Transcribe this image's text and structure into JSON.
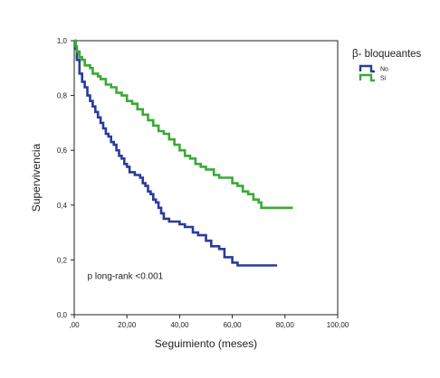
{
  "chart_data": {
    "type": "line",
    "step": true,
    "title": "",
    "xlabel": "Seguimiento (meses)",
    "ylabel": "Supervivencia",
    "xlim": [
      0,
      100
    ],
    "ylim": [
      0,
      1
    ],
    "x_ticks": [
      0,
      20,
      40,
      60,
      80,
      100
    ],
    "x_tick_labels": [
      ",00",
      "20,00",
      "40,00",
      "60,00",
      "80,00",
      "100,00"
    ],
    "y_ticks": [
      0,
      0.2,
      0.4,
      0.6,
      0.8,
      1.0
    ],
    "y_tick_labels": [
      "0,0",
      "0,2",
      "0,4",
      "0,6",
      "0,8",
      "1,0"
    ],
    "grid": false,
    "legend": {
      "title": "β- bloqueantes",
      "position": "top-right",
      "entries": [
        "No",
        "Si"
      ]
    },
    "annotation": "p long-rank <0.001",
    "series": [
      {
        "name": "No",
        "color": "#2b3b9a",
        "points": [
          [
            0,
            1.0
          ],
          [
            0.5,
            0.97
          ],
          [
            1,
            0.93
          ],
          [
            2,
            0.88
          ],
          [
            3,
            0.85
          ],
          [
            4,
            0.83
          ],
          [
            5,
            0.8
          ],
          [
            6,
            0.78
          ],
          [
            7,
            0.76
          ],
          [
            8,
            0.74
          ],
          [
            9,
            0.72
          ],
          [
            10,
            0.7
          ],
          [
            11,
            0.68
          ],
          [
            12,
            0.66
          ],
          [
            13,
            0.65
          ],
          [
            14,
            0.63
          ],
          [
            15,
            0.62
          ],
          [
            16,
            0.6
          ],
          [
            17,
            0.58
          ],
          [
            18,
            0.57
          ],
          [
            19,
            0.55
          ],
          [
            20,
            0.54
          ],
          [
            21,
            0.52
          ],
          [
            23,
            0.51
          ],
          [
            25,
            0.5
          ],
          [
            26,
            0.48
          ],
          [
            27,
            0.47
          ],
          [
            28,
            0.45
          ],
          [
            29,
            0.44
          ],
          [
            30,
            0.42
          ],
          [
            31,
            0.41
          ],
          [
            32,
            0.39
          ],
          [
            33,
            0.37
          ],
          [
            34,
            0.35
          ],
          [
            36,
            0.34
          ],
          [
            40,
            0.33
          ],
          [
            42,
            0.32
          ],
          [
            45,
            0.3
          ],
          [
            47,
            0.29
          ],
          [
            50,
            0.27
          ],
          [
            52,
            0.25
          ],
          [
            55,
            0.24
          ],
          [
            57,
            0.21
          ],
          [
            60,
            0.19
          ],
          [
            62,
            0.18
          ],
          [
            77,
            0.18
          ]
        ]
      },
      {
        "name": "Si",
        "color": "#3aaa35",
        "points": [
          [
            0,
            1.0
          ],
          [
            0.5,
            0.98
          ],
          [
            1,
            0.96
          ],
          [
            2,
            0.94
          ],
          [
            3,
            0.93
          ],
          [
            4,
            0.91
          ],
          [
            6,
            0.9
          ],
          [
            7,
            0.88
          ],
          [
            9,
            0.87
          ],
          [
            10,
            0.86
          ],
          [
            12,
            0.84
          ],
          [
            14,
            0.83
          ],
          [
            16,
            0.81
          ],
          [
            18,
            0.8
          ],
          [
            20,
            0.78
          ],
          [
            22,
            0.77
          ],
          [
            24,
            0.75
          ],
          [
            26,
            0.73
          ],
          [
            28,
            0.71
          ],
          [
            30,
            0.69
          ],
          [
            32,
            0.67
          ],
          [
            34,
            0.66
          ],
          [
            36,
            0.64
          ],
          [
            38,
            0.62
          ],
          [
            40,
            0.6
          ],
          [
            42,
            0.58
          ],
          [
            44,
            0.57
          ],
          [
            46,
            0.55
          ],
          [
            48,
            0.54
          ],
          [
            50,
            0.53
          ],
          [
            53,
            0.51
          ],
          [
            55,
            0.5
          ],
          [
            60,
            0.48
          ],
          [
            62,
            0.47
          ],
          [
            64,
            0.45
          ],
          [
            66,
            0.44
          ],
          [
            68,
            0.42
          ],
          [
            70,
            0.41
          ],
          [
            71,
            0.39
          ],
          [
            83,
            0.39
          ]
        ]
      }
    ]
  }
}
